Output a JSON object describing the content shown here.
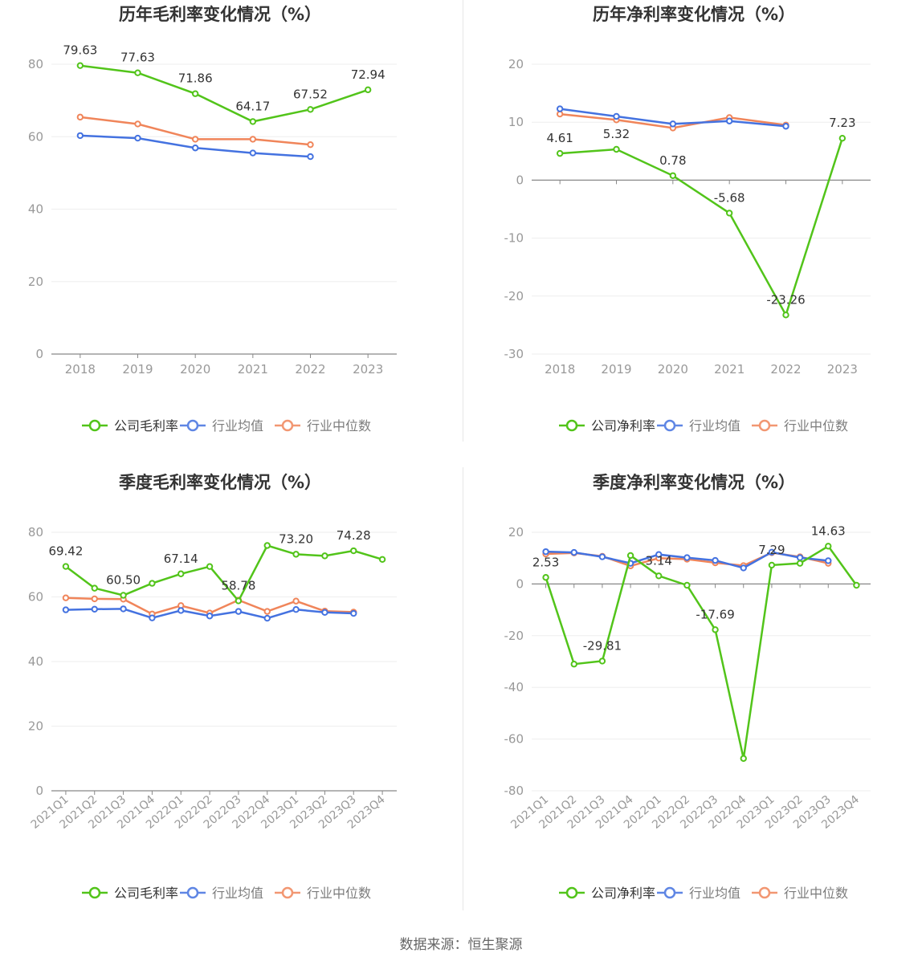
{
  "colors": {
    "company": "#52c41a",
    "industry_avg": "#4472e0",
    "industry_median": "#f0855a",
    "grid": "#eeeeee",
    "axis": "#888888",
    "label": "#333333",
    "tick": "#999999"
  },
  "legend_labels": [
    "行业均值",
    "行业中位数"
  ],
  "source": "数据来源：恒生聚源",
  "chart_data": [
    {
      "type": "line",
      "title": "历年毛利率变化情况（%）",
      "categories": [
        "2018",
        "2019",
        "2020",
        "2021",
        "2022",
        "2023"
      ],
      "ylim": [
        0,
        80
      ],
      "yticks": [
        0,
        20,
        40,
        60,
        80
      ],
      "grid": true,
      "legend": "bottom",
      "series": [
        {
          "name": "公司毛利率",
          "values": [
            79.63,
            77.63,
            71.86,
            64.17,
            67.52,
            72.94
          ],
          "labels": [
            "79.63",
            "77.63",
            "71.86",
            "64.17",
            "67.52",
            "72.94"
          ]
        },
        {
          "name": "行业均值",
          "values": [
            60.3,
            59.6,
            56.9,
            55.5,
            54.5,
            null
          ]
        },
        {
          "name": "行业中位数",
          "values": [
            65.4,
            63.5,
            59.3,
            59.3,
            57.8,
            null
          ]
        }
      ]
    },
    {
      "type": "line",
      "title": "历年净利率变化情况（%）",
      "categories": [
        "2018",
        "2019",
        "2020",
        "2021",
        "2022",
        "2023"
      ],
      "ylim": [
        -30,
        20
      ],
      "yticks": [
        -30,
        -20,
        -10,
        0,
        10,
        20
      ],
      "grid": true,
      "legend": "bottom",
      "series": [
        {
          "name": "公司净利率",
          "values": [
            4.61,
            5.32,
            0.78,
            -5.68,
            -23.26,
            7.23
          ],
          "labels": [
            "4.61",
            "5.32",
            "0.78",
            "-5.68",
            "-23.26",
            "7.23"
          ]
        },
        {
          "name": "行业均值",
          "values": [
            12.3,
            11.0,
            9.7,
            10.2,
            9.3,
            null
          ]
        },
        {
          "name": "行业中位数",
          "values": [
            11.4,
            10.4,
            9.0,
            10.8,
            9.5,
            null
          ]
        }
      ]
    },
    {
      "type": "line",
      "title": "季度毛利率变化情况（%）",
      "categories": [
        "2021Q1",
        "2021Q2",
        "2021Q3",
        "2021Q4",
        "2022Q1",
        "2022Q2",
        "2022Q3",
        "2022Q4",
        "2023Q1",
        "2023Q2",
        "2023Q3",
        "2023Q4"
      ],
      "ylim": [
        0,
        80
      ],
      "yticks": [
        0,
        20,
        40,
        60,
        80
      ],
      "grid": true,
      "legend": "bottom",
      "series": [
        {
          "name": "公司毛利率",
          "values": [
            69.42,
            62.7,
            60.5,
            64.2,
            67.14,
            69.4,
            58.78,
            75.9,
            73.2,
            72.7,
            74.28,
            71.6
          ],
          "labels": [
            "69.42",
            "",
            "60.50",
            "",
            "67.14",
            "",
            "58.78",
            "",
            "73.20",
            "",
            "74.28",
            ""
          ]
        },
        {
          "name": "行业均值",
          "values": [
            56.0,
            56.2,
            56.3,
            53.5,
            55.8,
            54.1,
            55.5,
            53.4,
            56.1,
            55.2,
            54.9,
            null
          ]
        },
        {
          "name": "行业中位数",
          "values": [
            59.7,
            59.4,
            59.3,
            54.7,
            57.3,
            55.0,
            59.0,
            55.5,
            58.7,
            55.6,
            55.3,
            null
          ]
        }
      ]
    },
    {
      "type": "line",
      "title": "季度净利率变化情况（%）",
      "categories": [
        "2021Q1",
        "2021Q2",
        "2021Q3",
        "2021Q4",
        "2022Q1",
        "2022Q2",
        "2022Q3",
        "2022Q4",
        "2023Q1",
        "2023Q2",
        "2023Q3",
        "2023Q4"
      ],
      "ylim": [
        -80,
        20
      ],
      "yticks": [
        -80,
        -60,
        -40,
        -20,
        0,
        20
      ],
      "grid": true,
      "legend": "bottom",
      "series": [
        {
          "name": "公司净利率",
          "values": [
            2.53,
            -31.0,
            -29.81,
            11.0,
            3.14,
            -0.5,
            -17.69,
            -67.5,
            7.29,
            8.0,
            14.63,
            -0.5
          ],
          "labels": [
            "2.53",
            "",
            "-29.81",
            "",
            "3.14",
            "",
            "-17.69",
            "",
            "7.29",
            "",
            "14.63",
            ""
          ]
        },
        {
          "name": "行业均值",
          "values": [
            12.5,
            12.2,
            10.5,
            8.0,
            11.4,
            10.2,
            9.1,
            6.2,
            12.3,
            10.2,
            9.0,
            null
          ]
        },
        {
          "name": "行业中位数",
          "values": [
            11.6,
            12.0,
            10.7,
            7.0,
            10.0,
            9.6,
            8.2,
            7.1,
            12.1,
            10.5,
            8.0,
            null
          ]
        }
      ]
    }
  ]
}
